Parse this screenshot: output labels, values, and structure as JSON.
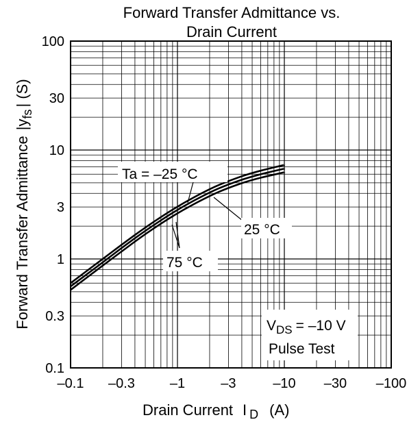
{
  "chart_data": {
    "type": "line",
    "title_line1": "Forward Transfer Admittance vs.",
    "title_line2": "Drain Current",
    "xlabel": "Drain Current",
    "xlabel_symbol": "I",
    "xlabel_sub": "D",
    "xlabel_unit": "(A)",
    "ylabel": "Forward Transfer Admittance",
    "ylabel_symbol_pre": "|y",
    "ylabel_sub": "fs",
    "ylabel_symbol_post": "| (S)",
    "x_scale": "log",
    "y_scale": "log",
    "xlim": [
      -0.1,
      -100
    ],
    "ylim": [
      0.1,
      100
    ],
    "grid": true,
    "x_ticks": [
      "–0.1",
      "–0.3",
      "–1",
      "–3",
      "–10",
      "–30",
      "–100"
    ],
    "y_ticks": [
      "0.1",
      "0.3",
      "1",
      "3",
      "10",
      "30",
      "100"
    ],
    "x_tick_values": [
      -0.1,
      -0.3,
      -1,
      -3,
      -10,
      -30,
      -100
    ],
    "y_tick_values": [
      0.1,
      0.3,
      1,
      3,
      10,
      30,
      100
    ],
    "series": [
      {
        "name": "Ta = –25 °C",
        "x": [
          -0.1,
          -0.2,
          -0.3,
          -0.5,
          -1,
          -2,
          -3,
          -5,
          -10
        ],
        "y": [
          0.6,
          1.0,
          1.35,
          1.95,
          3.05,
          4.4,
          5.2,
          6.2,
          7.3
        ]
      },
      {
        "name": "25 °C",
        "x": [
          -0.1,
          -0.2,
          -0.3,
          -0.5,
          -1,
          -2,
          -3,
          -5,
          -10
        ],
        "y": [
          0.56,
          0.93,
          1.26,
          1.82,
          2.85,
          4.1,
          4.85,
          5.75,
          6.75
        ]
      },
      {
        "name": "75 °C",
        "x": [
          -0.1,
          -0.2,
          -0.3,
          -0.5,
          -1,
          -2,
          -3,
          -5,
          -10
        ],
        "y": [
          0.52,
          0.87,
          1.17,
          1.7,
          2.65,
          3.8,
          4.5,
          5.35,
          6.25
        ]
      }
    ],
    "annotations": {
      "vds_prefix": "V",
      "vds_sub": "DS",
      "vds_value": "= –10 V",
      "pulse_test": "Pulse Test"
    }
  }
}
